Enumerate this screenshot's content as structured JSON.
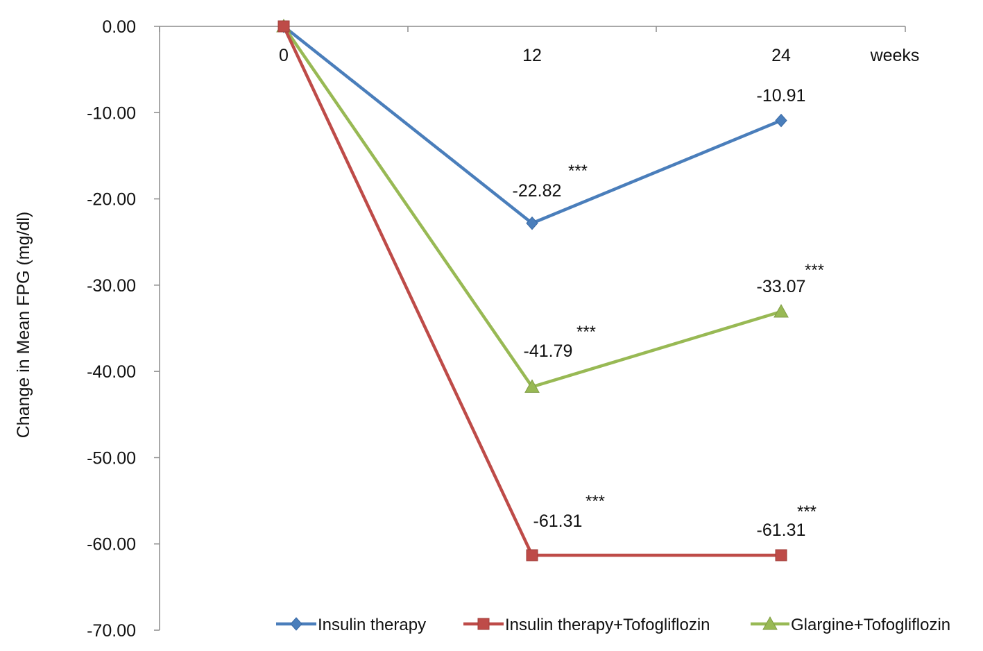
{
  "chart_data": {
    "type": "line",
    "ylabel": "Change in Mean FPG (mg/dl)",
    "x_unit_label": "weeks",
    "categories": [
      "0",
      "12",
      "24"
    ],
    "x": [
      0,
      12,
      24
    ],
    "ylim": [
      -70,
      0
    ],
    "y_ticks": [
      "0.00",
      "-10.00",
      "-20.00",
      "-30.00",
      "-40.00",
      "-50.00",
      "-60.00",
      "-70.00"
    ],
    "grid": false,
    "legend": "bottom",
    "series": [
      {
        "name": "Insulin therapy",
        "color": "#4a7ebb",
        "marker": "diamond",
        "values": [
          0,
          -22.82,
          -10.91
        ],
        "labels": [
          "",
          "-22.82",
          "-10.91"
        ],
        "significance": [
          "",
          "***",
          ""
        ]
      },
      {
        "name": "Insulin therapy+Tofogliflozin",
        "color": "#be4b48",
        "marker": "square",
        "values": [
          0,
          -61.31,
          -61.31
        ],
        "labels": [
          "",
          "-61.31",
          "-61.31"
        ],
        "significance": [
          "",
          "***",
          "***"
        ]
      },
      {
        "name": "Glargine+Tofogliflozin",
        "color": "#98b954",
        "marker": "triangle",
        "values": [
          0,
          -41.79,
          -33.07
        ],
        "labels": [
          "",
          "-41.79",
          "-33.07"
        ],
        "significance": [
          "",
          "***",
          "***"
        ]
      }
    ]
  }
}
